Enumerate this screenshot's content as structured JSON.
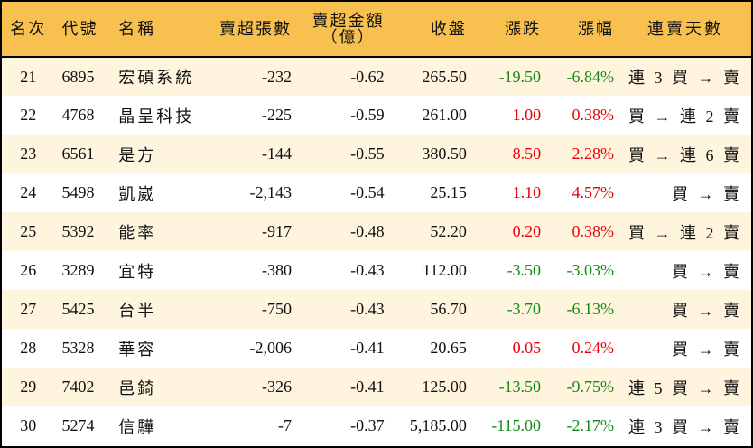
{
  "table": {
    "headers": {
      "rank": "名次",
      "code": "代號",
      "name": "名稱",
      "sell_qty": "賣超張數",
      "sell_amount_line1": "賣超金額",
      "sell_amount_line2": "（億）",
      "close": "收盤",
      "change": "漲跌",
      "change_pct": "漲幅",
      "streak": "連賣天數"
    },
    "colors": {
      "header_bg": "#f8c04f",
      "row_odd_bg": "#fff5df",
      "row_even_bg": "#ffffff",
      "up": "#e8000b",
      "down": "#138a13"
    },
    "rows": [
      {
        "rank": "21",
        "code": "6895",
        "name": "宏碩系統",
        "sell_qty": "-232",
        "sell_amount": "-0.62",
        "close": "265.50",
        "change": "-19.50",
        "change_pct": "-6.84%",
        "direction": "down",
        "streak": "連 3 買 → 賣"
      },
      {
        "rank": "22",
        "code": "4768",
        "name": "晶呈科技",
        "sell_qty": "-225",
        "sell_amount": "-0.59",
        "close": "261.00",
        "change": "1.00",
        "change_pct": "0.38%",
        "direction": "up",
        "streak": "買 → 連 2 賣"
      },
      {
        "rank": "23",
        "code": "6561",
        "name": "是方",
        "sell_qty": "-144",
        "sell_amount": "-0.55",
        "close": "380.50",
        "change": "8.50",
        "change_pct": "2.28%",
        "direction": "up",
        "streak": "買 → 連 6 賣"
      },
      {
        "rank": "24",
        "code": "5498",
        "name": "凱崴",
        "sell_qty": "-2,143",
        "sell_amount": "-0.54",
        "close": "25.15",
        "change": "1.10",
        "change_pct": "4.57%",
        "direction": "up",
        "streak": "買 → 賣"
      },
      {
        "rank": "25",
        "code": "5392",
        "name": "能率",
        "sell_qty": "-917",
        "sell_amount": "-0.48",
        "close": "52.20",
        "change": "0.20",
        "change_pct": "0.38%",
        "direction": "up",
        "streak": "買 → 連 2 賣"
      },
      {
        "rank": "26",
        "code": "3289",
        "name": "宜特",
        "sell_qty": "-380",
        "sell_amount": "-0.43",
        "close": "112.00",
        "change": "-3.50",
        "change_pct": "-3.03%",
        "direction": "down",
        "streak": "買 → 賣"
      },
      {
        "rank": "27",
        "code": "5425",
        "name": "台半",
        "sell_qty": "-750",
        "sell_amount": "-0.43",
        "close": "56.70",
        "change": "-3.70",
        "change_pct": "-6.13%",
        "direction": "down",
        "streak": "買 → 賣"
      },
      {
        "rank": "28",
        "code": "5328",
        "name": "華容",
        "sell_qty": "-2,006",
        "sell_amount": "-0.41",
        "close": "20.65",
        "change": "0.05",
        "change_pct": "0.24%",
        "direction": "up",
        "streak": "買 → 賣"
      },
      {
        "rank": "29",
        "code": "7402",
        "name": "邑錡",
        "sell_qty": "-326",
        "sell_amount": "-0.41",
        "close": "125.00",
        "change": "-13.50",
        "change_pct": "-9.75%",
        "direction": "down",
        "streak": "連 5 買 → 賣"
      },
      {
        "rank": "30",
        "code": "5274",
        "name": "信驊",
        "sell_qty": "-7",
        "sell_amount": "-0.37",
        "close": "5,185.00",
        "change": "-115.00",
        "change_pct": "-2.17%",
        "direction": "down",
        "streak": "連 3 買 → 賣"
      }
    ]
  }
}
